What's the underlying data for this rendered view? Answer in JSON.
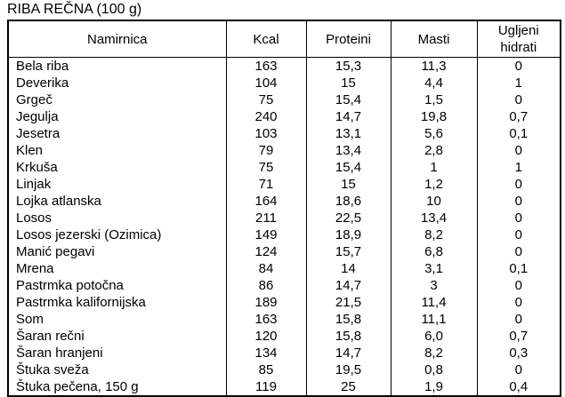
{
  "title": "RIBA REČNA (100 g)",
  "table": {
    "columns": [
      "Namirnica",
      "Kcal",
      "Proteini",
      "Masti",
      "Ugljeni hidrati"
    ],
    "rows": [
      [
        "Bela riba",
        "163",
        "15,3",
        "11,3",
        "0"
      ],
      [
        "Deverika",
        "104",
        "15",
        "4,4",
        "1"
      ],
      [
        "Grgeč",
        "75",
        "15,4",
        "1,5",
        "0"
      ],
      [
        "Jegulja",
        "240",
        "14,7",
        "19,8",
        "0,7"
      ],
      [
        "Jesetra",
        "103",
        "13,1",
        "5,6",
        "0,1"
      ],
      [
        "Klen",
        "79",
        "13,4",
        "2,8",
        "0"
      ],
      [
        "Krkuša",
        "75",
        "15,4",
        "1",
        "1"
      ],
      [
        "Linjak",
        "71",
        "15",
        "1,2",
        "0"
      ],
      [
        "Lojka atlanska",
        "164",
        "18,6",
        "10",
        "0"
      ],
      [
        "Losos",
        "211",
        "22,5",
        "13,4",
        "0"
      ],
      [
        "Losos jezerski (Ozimica)",
        "149",
        "18,9",
        "8,2",
        "0"
      ],
      [
        "Manić pegavi",
        "124",
        "15,7",
        "6,8",
        "0"
      ],
      [
        "Mrena",
        "84",
        "14",
        "3,1",
        "0,1"
      ],
      [
        "Pastrmka potočna",
        "86",
        "14,7",
        "3",
        "0"
      ],
      [
        "Pastrmka kalifornijska",
        "189",
        "21,5",
        "11,4",
        "0"
      ],
      [
        "Som",
        "163",
        "15,8",
        "11,1",
        "0"
      ],
      [
        "Šaran rečni",
        "120",
        "15,8",
        "6,0",
        "0,7"
      ],
      [
        "Šaran hranjeni",
        "134",
        "14,7",
        "8,2",
        "0,3"
      ],
      [
        "Štuka sveža",
        "85",
        "19,5",
        "0,8",
        "0"
      ],
      [
        "Štuka pečena, 150 g",
        "119",
        "25",
        "1,9",
        "0,4"
      ]
    ]
  }
}
